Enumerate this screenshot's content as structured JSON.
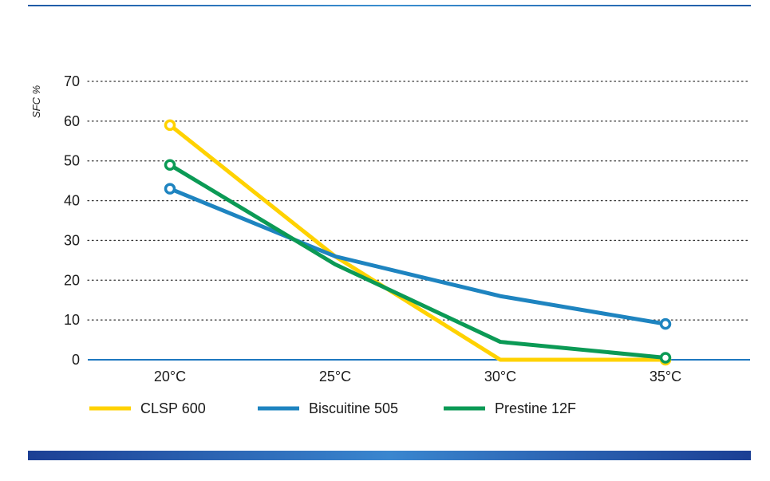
{
  "colors": {
    "accent": "#1f6fb5",
    "grid": "#333333",
    "axis": "#1e78c0"
  },
  "chart_data": {
    "type": "line",
    "xlabel": "",
    "ylabel": "SFC %",
    "categories": [
      "20°C",
      "25°C",
      "30°C",
      "35°C"
    ],
    "y_ticks": [
      "0",
      "10",
      "20",
      "30",
      "40",
      "50",
      "60",
      "70"
    ],
    "ylim": [
      0,
      70
    ],
    "grid": "horizontal dotted",
    "legend_position": "bottom",
    "series": [
      {
        "name": "CLSP 600",
        "color": "#ffd200",
        "values": [
          59,
          26,
          0,
          0
        ]
      },
      {
        "name": "Biscuitine 505",
        "color": "#1e84c0",
        "values": [
          43,
          26,
          16,
          9
        ]
      },
      {
        "name": "Prestine 12F",
        "color": "#0b9a55",
        "values": [
          49,
          24,
          4.5,
          0.5
        ]
      }
    ]
  }
}
